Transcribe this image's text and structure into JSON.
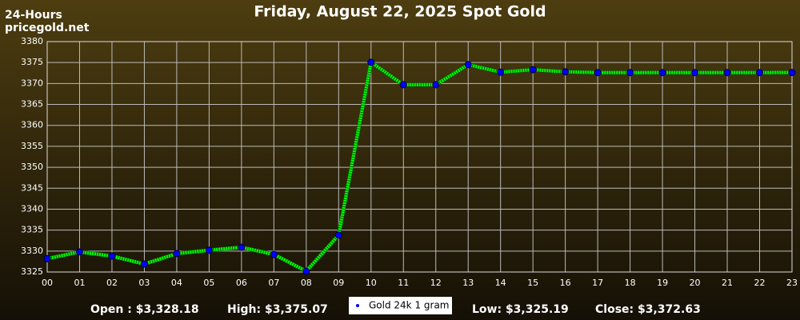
{
  "chart_data": {
    "type": "line",
    "title": "Friday, August 22, 2025 Spot Gold",
    "period": "24-Hours",
    "source": "pricegold.net",
    "categories": [
      "00",
      "01",
      "02",
      "03",
      "04",
      "05",
      "06",
      "07",
      "08",
      "09",
      "10",
      "11",
      "12",
      "13",
      "14",
      "15",
      "16",
      "17",
      "18",
      "19",
      "20",
      "21",
      "22",
      "23"
    ],
    "series": [
      {
        "name": "Gold 24k 1 gram",
        "color": "#00ff00",
        "marker_color": "#0000ff",
        "values": [
          3328.18,
          3329.8,
          3328.8,
          3326.9,
          3329.4,
          3330.2,
          3330.9,
          3329.2,
          3325.19,
          3333.8,
          3375.07,
          3369.7,
          3369.7,
          3374.5,
          3372.7,
          3373.3,
          3372.8,
          3372.6,
          3372.6,
          3372.6,
          3372.6,
          3372.6,
          3372.6,
          3372.63
        ]
      }
    ],
    "ylim": [
      3325,
      3380
    ],
    "yticks": [
      3325,
      3330,
      3335,
      3340,
      3345,
      3350,
      3355,
      3360,
      3365,
      3370,
      3375,
      3380
    ],
    "grid": true,
    "stats": [
      "Open : $3,328.18",
      "High: $3,375.07",
      "Low: $3,325.19",
      "Close: $3,372.63"
    ]
  }
}
